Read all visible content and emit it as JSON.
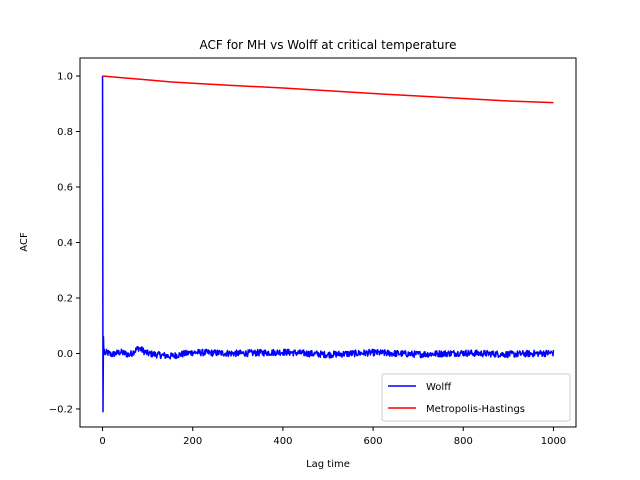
{
  "chart_data": {
    "type": "line",
    "title": "ACF for MH vs Wolff at critical temperature",
    "xlabel": "Lag time",
    "ylabel": "ACF",
    "xlim": [
      -50,
      1050
    ],
    "ylim": [
      -0.265,
      1.065
    ],
    "x_ticks": [
      0,
      200,
      400,
      600,
      800,
      1000
    ],
    "y_ticks": [
      -0.2,
      0.0,
      0.2,
      0.4,
      0.6,
      0.8,
      1.0
    ],
    "x_tick_labels": [
      "0",
      "200",
      "400",
      "600",
      "800",
      "1000"
    ],
    "y_tick_labels": [
      "−0.2",
      "0.0",
      "0.2",
      "0.4",
      "0.6",
      "0.8",
      "1.0"
    ],
    "grid": false,
    "legend_position": "lower-right",
    "series": [
      {
        "name": "Wolff",
        "color": "#0000ff",
        "x": [
          0,
          1,
          2,
          3,
          4,
          5,
          10,
          20,
          40,
          60,
          80,
          100,
          150,
          200,
          300,
          400,
          500,
          600,
          700,
          800,
          900,
          1000
        ],
        "y": [
          1.0,
          -0.21,
          0.06,
          -0.005,
          0.015,
          0.0,
          0.003,
          -0.004,
          0.005,
          -0.005,
          0.02,
          0.0,
          -0.01,
          0.004,
          0.0,
          0.005,
          -0.004,
          0.003,
          -0.003,
          0.002,
          -0.003,
          0.002
        ],
        "noise_amplitude": 0.012
      },
      {
        "name": "Metropolis-Hastings",
        "color": "#ff0000",
        "x": [
          0,
          50,
          100,
          150,
          200,
          300,
          400,
          500,
          600,
          700,
          800,
          900,
          1000
        ],
        "y": [
          1.0,
          0.993,
          0.986,
          0.979,
          0.974,
          0.965,
          0.957,
          0.947,
          0.937,
          0.928,
          0.919,
          0.91,
          0.904
        ]
      }
    ]
  }
}
